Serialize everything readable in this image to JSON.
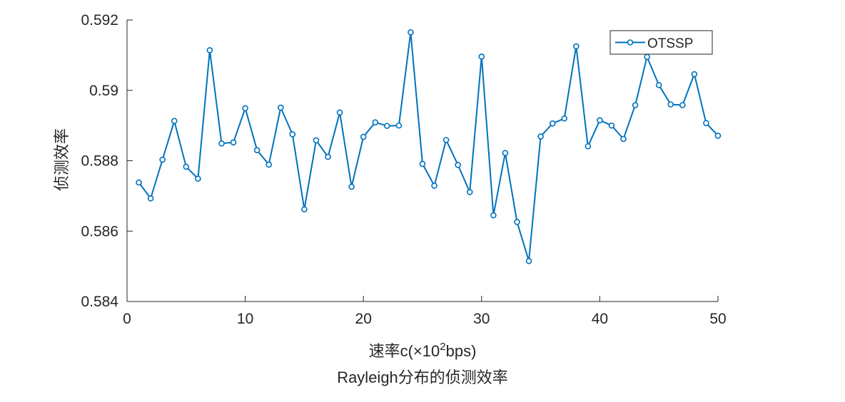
{
  "chart_data": {
    "type": "line",
    "title": "Rayleigh分布的侦测效率",
    "xlabel": {
      "prefix": "速率c(×10",
      "superscript": "2",
      "suffix": "bps)"
    },
    "ylabel": "侦测效率",
    "xlim": [
      0,
      50
    ],
    "ylim": [
      0.584,
      0.592
    ],
    "xticks": [
      0,
      10,
      20,
      30,
      40,
      50
    ],
    "xtick_labels": [
      "0",
      "10",
      "20",
      "30",
      "40",
      "50"
    ],
    "yticks": [
      0.584,
      0.586,
      0.588,
      0.59,
      0.592
    ],
    "ytick_labels": [
      "0.584",
      "0.586",
      "0.588",
      "0.59",
      "0.592"
    ],
    "grid": false,
    "legend_position": "top-right",
    "colors": {
      "series": "#0072BD",
      "axis": "#262626"
    },
    "marker": "circle",
    "series": [
      {
        "name": "OTSSP",
        "x": [
          1,
          2,
          3,
          4,
          5,
          6,
          7,
          8,
          9,
          10,
          11,
          12,
          13,
          14,
          15,
          16,
          17,
          18,
          19,
          20,
          21,
          22,
          23,
          24,
          25,
          26,
          27,
          28,
          29,
          30,
          31,
          32,
          33,
          34,
          35,
          36,
          37,
          38,
          39,
          40,
          41,
          42,
          43,
          44,
          45,
          46,
          47,
          48,
          49,
          50
        ],
        "values": [
          0.58738,
          0.58693,
          0.58803,
          0.58913,
          0.58783,
          0.58749,
          0.59114,
          0.58849,
          0.58852,
          0.58949,
          0.5883,
          0.58789,
          0.58951,
          0.58875,
          0.58662,
          0.58858,
          0.58811,
          0.58937,
          0.58726,
          0.58868,
          0.58909,
          0.58899,
          0.589,
          0.59165,
          0.58791,
          0.58729,
          0.58859,
          0.58788,
          0.58711,
          0.59096,
          0.58645,
          0.58822,
          0.58626,
          0.58515,
          0.58869,
          0.58906,
          0.5892,
          0.59125,
          0.58841,
          0.58915,
          0.589,
          0.58862,
          0.58958,
          0.59095,
          0.59015,
          0.5896,
          0.58958,
          0.59046,
          0.58907,
          0.58871
        ]
      }
    ]
  }
}
